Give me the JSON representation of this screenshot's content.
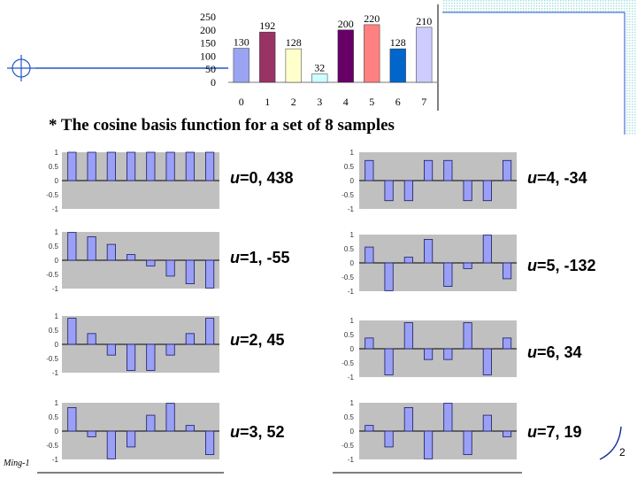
{
  "subtitle": "* The cosine basis function for a set of 8 samples",
  "footer_author": "Ming-1",
  "page_number": "2",
  "colors": {
    "top_bars": [
      "#9aa4f2",
      "#993366",
      "#ffffcc",
      "#ccffff",
      "#660066",
      "#ff8080",
      "#0066cc",
      "#ccccff"
    ],
    "basis_bar_fill": "#9aa0f5",
    "basis_bar_stroke": "#1a1a66",
    "plot_bg": "#c0c0c0",
    "corner_pattern": "#9fdede",
    "accent_line": "#2255cc"
  },
  "chart_data": [
    {
      "type": "bar",
      "title": "",
      "categories": [
        "0",
        "1",
        "2",
        "3",
        "4",
        "5",
        "6",
        "7"
      ],
      "values": [
        130,
        192,
        128,
        32,
        200,
        220,
        128,
        210
      ],
      "data_labels": [
        "130",
        "192",
        "128",
        "32",
        "200",
        "220",
        "128",
        "210"
      ],
      "ylim": [
        0,
        250
      ],
      "yticks": [
        "250",
        "200",
        "150",
        "100",
        "50",
        "0"
      ],
      "xlabel": "",
      "ylabel": ""
    },
    {
      "type": "bar",
      "title": "The cosine basis function for a set of 8 samples",
      "ylim": [
        -1,
        1
      ],
      "yticks": [
        "1",
        "0.5",
        "0",
        "-0.5",
        "-1"
      ],
      "series": [
        {
          "name": "u=0",
          "label_prefix": "u",
          "label_rest": "=0, 438",
          "values": [
            1,
            1,
            1,
            1,
            1,
            1,
            1,
            1
          ]
        },
        {
          "name": "u=1",
          "label_prefix": "u",
          "label_rest": "=1, -55",
          "values": [
            0.98,
            0.83,
            0.56,
            0.2,
            -0.2,
            -0.56,
            -0.83,
            -0.98
          ]
        },
        {
          "name": "u=2",
          "label_prefix": "u",
          "label_rest": "=2, 45",
          "values": [
            0.92,
            0.38,
            -0.38,
            -0.92,
            -0.92,
            -0.38,
            0.38,
            0.92
          ]
        },
        {
          "name": "u=3",
          "label_prefix": "u",
          "label_rest": "=3, 52",
          "values": [
            0.83,
            -0.2,
            -0.98,
            -0.56,
            0.56,
            0.98,
            0.2,
            -0.83
          ]
        },
        {
          "name": "u=4",
          "label_prefix": "u",
          "label_rest": "=4, -34",
          "values": [
            0.71,
            -0.71,
            -0.71,
            0.71,
            0.71,
            -0.71,
            -0.71,
            0.71
          ]
        },
        {
          "name": "u=5",
          "label_prefix": "u",
          "label_rest": "=5, -132",
          "values": [
            0.56,
            -0.98,
            0.2,
            0.83,
            -0.83,
            -0.2,
            0.98,
            -0.56
          ]
        },
        {
          "name": "u=6",
          "label_prefix": "u",
          "label_rest": "=6, 34",
          "values": [
            0.38,
            -0.92,
            0.92,
            -0.38,
            -0.38,
            0.92,
            -0.92,
            0.38
          ]
        },
        {
          "name": "u=7",
          "label_prefix": "u",
          "label_rest": "=7, 19",
          "values": [
            0.2,
            -0.56,
            0.83,
            -0.98,
            0.98,
            -0.83,
            0.56,
            -0.2
          ]
        }
      ]
    }
  ]
}
